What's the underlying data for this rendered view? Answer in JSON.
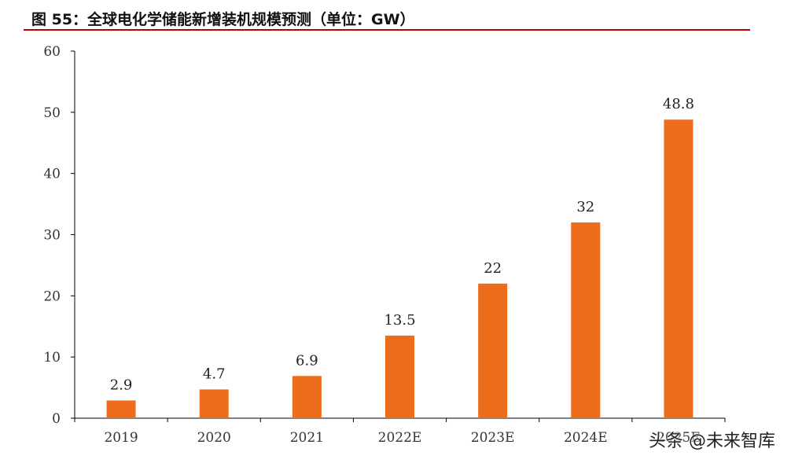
{
  "header": {
    "title": "图 55：全球电化学储能新增装机规模预测（单位：GW）"
  },
  "watermark": "头条 @未来智库",
  "colors": {
    "bar": "#ED6D1D",
    "title_rule": "#C00000",
    "axis": "#000000"
  },
  "chart_data": {
    "type": "bar",
    "title": "图 55：全球电化学储能新增装机规模预测（单位：GW）",
    "categories": [
      "2019",
      "2020",
      "2021",
      "2022E",
      "2023E",
      "2024E",
      "2025E"
    ],
    "values": [
      2.9,
      4.7,
      6.9,
      13.5,
      22,
      32,
      48.8
    ],
    "value_labels": [
      "2.9",
      "4.7",
      "6.9",
      "13.5",
      "22",
      "32",
      "48.8"
    ],
    "ylim": [
      0,
      60
    ],
    "yticks": [
      0,
      10,
      20,
      30,
      40,
      50,
      60
    ],
    "grid": false,
    "legend": "none",
    "xlabel": "",
    "ylabel": ""
  }
}
